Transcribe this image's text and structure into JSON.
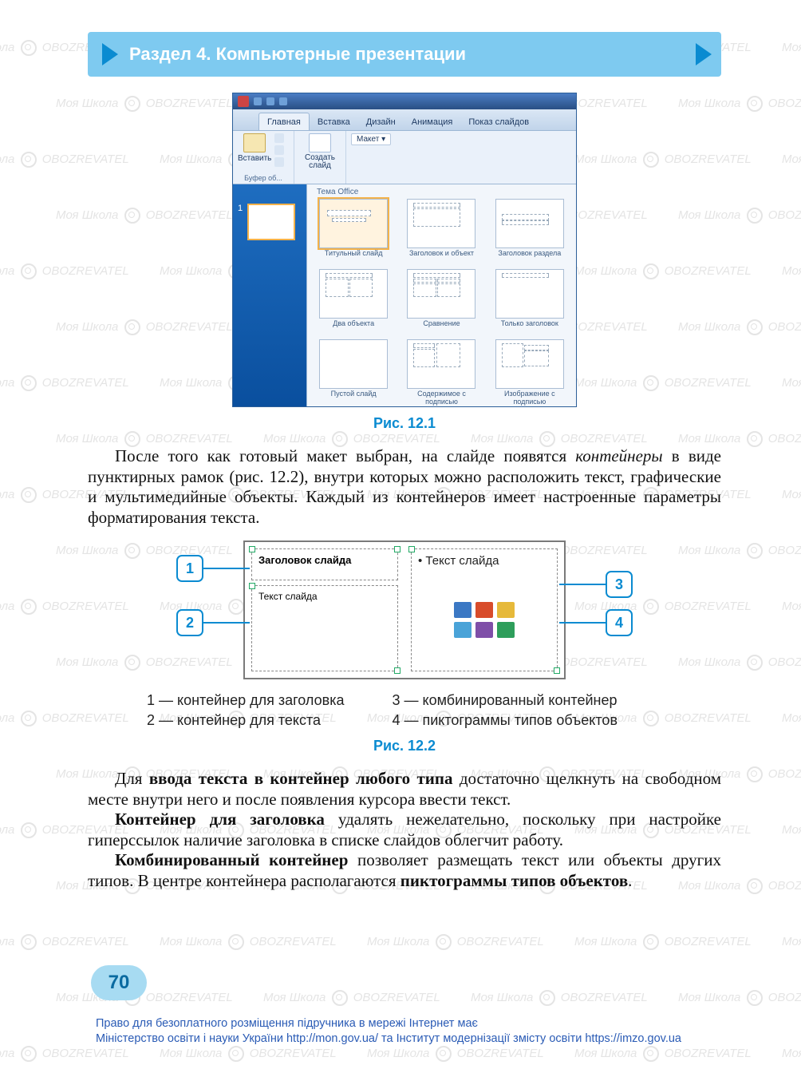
{
  "header": {
    "title": "Раздел 4. Компьютерные презентации"
  },
  "ppt": {
    "tabs": [
      "Главная",
      "Вставка",
      "Дизайн",
      "Анимация",
      "Показ слайдов"
    ],
    "paste_label": "Вставить",
    "clipboard_group": "Буфер об...",
    "newslide_label": "Создать слайд",
    "layout_btn": "Макет ▾",
    "gallery_title": "Тема Office",
    "layouts": [
      "Титульный слайд",
      "Заголовок и объект",
      "Заголовок раздела",
      "Два объекта",
      "Сравнение",
      "Только заголовок",
      "Пустой слайд",
      "Содержимое с подписью",
      "Изображение с подписью"
    ]
  },
  "captions": {
    "fig1": "Рис. 12.1",
    "fig2": "Рис. 12.2"
  },
  "para1_a": "После того как готовый макет выбран, на слайде появятся ",
  "para1_em": "контейнеры",
  "para1_b": " в виде пунктирных рамок (рис. 12.2), внутри которых можно расположить текст, графические и мультимедийные объекты. Каждый из контейнеров имеет настроенные параметры форматирования текста.",
  "fig2": {
    "title_ph": "Заголовок слайда",
    "text_ph": "Текст слайда",
    "bullet_ph": "Текст слайда"
  },
  "legend": {
    "l1": "1 — контейнер для заголовка",
    "l2": "2 — контейнер для текста",
    "l3": "3 — комбинированный контейнер",
    "l4": "4 — пиктограммы типов объектов"
  },
  "para2_a": "Для ",
  "para2_b1": "ввода текста в контейнер любого типа",
  "para2_c": " достаточно щелкнуть на свободном месте внутри него и после появления курсора ввести текст.",
  "para3_b": "Контейнер для заголовка",
  "para3_t": " удалять нежелательно, поскольку при настройке гиперссылок наличие заголовка в списке слайдов облегчит работу.",
  "para4_b1": "Комбинированный контейнер",
  "para4_t1": " позволяет размещать текст или объекты других типов. В центре контейнера располагаются ",
  "para4_b2": "пиктограммы типов объектов",
  "para4_t2": ".",
  "page_number": "70",
  "footer_l1": "Право для безоплатного розміщення підручника в мережі Інтернет має",
  "footer_l2": "Міністерство освіти і науки України http://mon.gov.ua/ та Інститут модернізації змісту освіти https://imzo.gov.ua",
  "watermark_a": "Моя Школа",
  "watermark_b": "OBOZREVATEL",
  "colors": {
    "header_bg": "#7ecaf0",
    "accent": "#0a8bd1",
    "icon_colors": [
      "#3b78c4",
      "#d84c2b",
      "#e6b93a",
      "#4aa3d8",
      "#7f4fa8",
      "#2e9e5b"
    ]
  }
}
